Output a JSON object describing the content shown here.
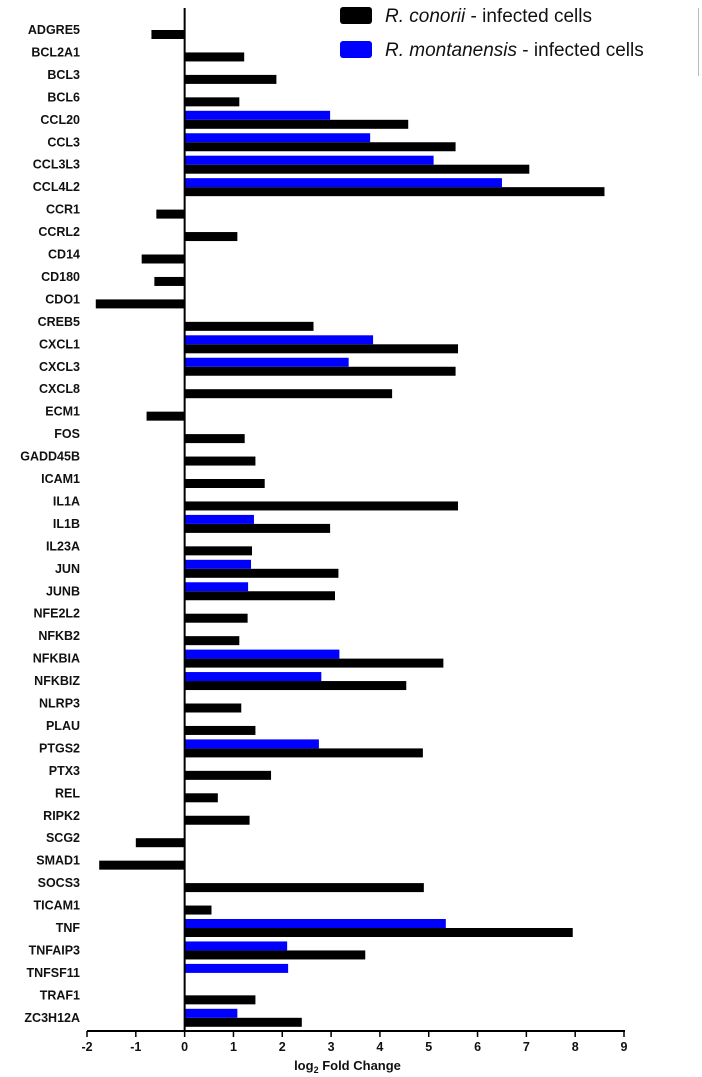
{
  "chart_data": {
    "type": "bar",
    "orientation": "horizontal",
    "categories": [
      "ADGRE5",
      "BCL2A1",
      "BCL3",
      "BCL6",
      "CCL20",
      "CCL3",
      "CCL3L3",
      "CCL4L2",
      "CCR1",
      "CCRL2",
      "CD14",
      "CD180",
      "CDO1",
      "CREB5",
      "CXCL1",
      "CXCL3",
      "CXCL8",
      "ECM1",
      "FOS",
      "GADD45B",
      "ICAM1",
      "IL1A",
      "IL1B",
      "IL23A",
      "JUN",
      "JUNB",
      "NFE2L2",
      "NFKB2",
      "NFKBIA",
      "NFKBIZ",
      "NLRP3",
      "PLAU",
      "PTGS2",
      "PTX3",
      "REL",
      "RIPK2",
      "SCG2",
      "SMAD1",
      "SOCS3",
      "TICAM1",
      "TNF",
      "TNFAIP3",
      "TNFSF11",
      "TRAF1",
      "ZC3H12A"
    ],
    "series": [
      {
        "name": "R. conorii",
        "name_suffix": " - infected cells",
        "color": "#000000",
        "values": [
          -0.68,
          1.22,
          1.88,
          1.12,
          4.58,
          5.55,
          7.06,
          8.6,
          -0.58,
          1.08,
          -0.88,
          -0.62,
          -1.82,
          2.64,
          5.6,
          5.55,
          4.25,
          -0.78,
          1.23,
          1.45,
          1.64,
          5.6,
          2.98,
          1.38,
          3.15,
          3.08,
          1.29,
          1.12,
          5.3,
          4.54,
          1.16,
          1.45,
          4.88,
          1.77,
          0.68,
          1.33,
          -1.0,
          -1.75,
          4.9,
          0.55,
          7.95,
          3.7,
          null,
          1.45,
          2.4
        ]
      },
      {
        "name": "R. montanensis",
        "name_suffix": " - infected cells",
        "color": "#0000ff",
        "values": [
          null,
          null,
          null,
          null,
          2.98,
          3.8,
          5.1,
          6.5,
          null,
          null,
          null,
          null,
          null,
          null,
          3.86,
          3.36,
          null,
          null,
          null,
          null,
          null,
          null,
          1.42,
          null,
          1.36,
          1.3,
          null,
          null,
          3.17,
          2.8,
          null,
          null,
          2.75,
          null,
          null,
          null,
          null,
          null,
          null,
          null,
          5.35,
          2.1,
          2.12,
          null,
          1.08
        ]
      }
    ],
    "xlabel_main": "log",
    "xlabel_sub": "2",
    "xlabel_rest": " Fold Change",
    "ylabel": "",
    "xlim": [
      -2,
      9
    ],
    "xticks": [
      "-2",
      "-1",
      "0",
      "1",
      "2",
      "3",
      "4",
      "5",
      "6",
      "7",
      "8",
      "9"
    ],
    "grid": false,
    "legend_position": "top-right"
  }
}
